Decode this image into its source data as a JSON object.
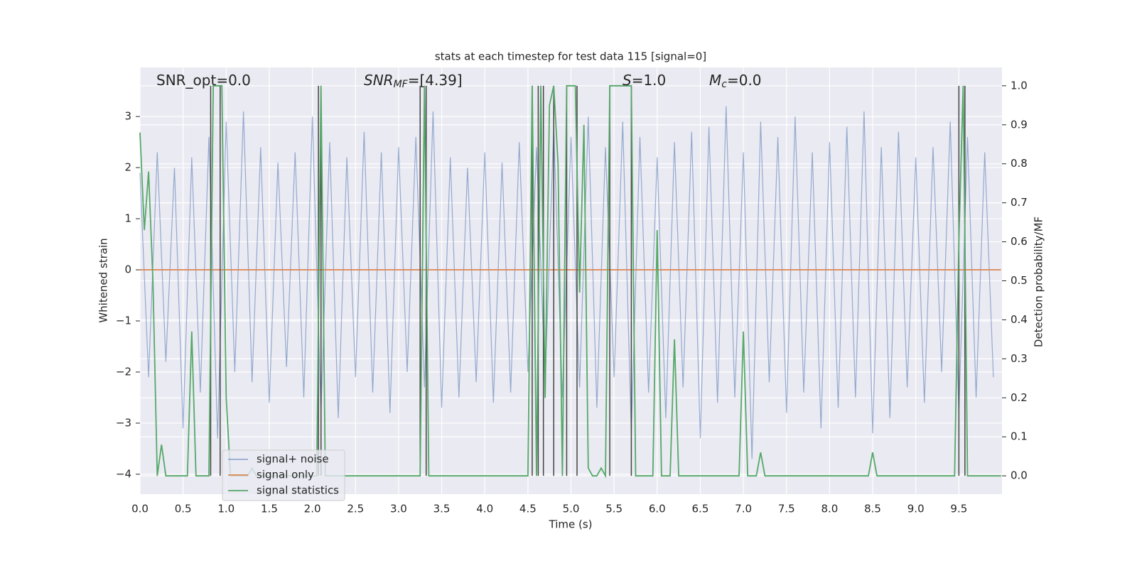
{
  "chart_data": {
    "type": "line",
    "title": "stats at each timestep for test data 115 [signal=0]",
    "xlabel": "Time (s)",
    "ylabel": "Whitened strain",
    "y2label": "Detection probability/MF",
    "annotations": [
      {
        "base": "SNR_opt=0.0"
      },
      {
        "base": "SNR",
        "sub": "MF",
        "rest": "=[4.39]"
      },
      {
        "base": "S",
        "rest": "=1.0"
      },
      {
        "base": "M",
        "sub": "c",
        "rest": "=0.0"
      }
    ],
    "xlim": [
      0,
      10
    ],
    "ylim": [
      -4.39,
      3.96
    ],
    "y2lim": [
      -0.047,
      1.047
    ],
    "xticks": [
      {
        "value": 0,
        "label": "0.0"
      },
      0.5,
      {
        "value": 1,
        "label": "1.0"
      },
      1.5,
      {
        "value": 2,
        "label": "2.0"
      },
      2.5,
      {
        "value": 3,
        "label": "3.0"
      },
      3.5,
      {
        "value": 4,
        "label": "4.0"
      },
      4.5,
      {
        "value": 5,
        "label": "5.0"
      },
      5.5,
      {
        "value": 6,
        "label": "6.0"
      },
      6.5,
      {
        "value": 7,
        "label": "7.0"
      },
      7.5,
      {
        "value": 8,
        "label": "8.0"
      },
      8.5,
      {
        "value": 9,
        "label": "9.0"
      },
      9.5
    ],
    "yticks": [
      {
        "value": -4,
        "label": "−4"
      },
      {
        "value": -3,
        "label": "−3"
      },
      {
        "value": -2,
        "label": "−2"
      },
      {
        "value": -1,
        "label": "−1"
      },
      0,
      1,
      2,
      3
    ],
    "y2ticks": [
      {
        "value": 0,
        "label": "0.0"
      },
      0.1,
      0.2,
      0.3,
      0.4,
      0.5,
      0.6,
      0.7,
      0.8,
      0.9,
      {
        "value": 1,
        "label": "1.0"
      }
    ],
    "grid": true,
    "legend": "lower left",
    "series": [
      {
        "name": "signal+ noise",
        "color": "#4c72b0",
        "x": [
          0,
          0.1,
          0.2,
          0.3,
          0.4,
          0.5,
          0.6,
          0.7,
          0.8,
          0.9,
          1,
          1.1,
          1.2,
          1.3,
          1.4,
          1.5,
          1.6,
          1.7,
          1.8,
          1.9,
          2,
          2.1,
          2.2,
          2.3,
          2.4,
          2.5,
          2.6,
          2.7,
          2.8,
          2.9,
          3,
          3.1,
          3.2,
          3.3,
          3.4,
          3.5,
          3.6,
          3.7,
          3.8,
          3.9,
          4,
          4.1,
          4.2,
          4.3,
          4.4,
          4.5,
          4.6,
          4.7,
          4.8,
          4.9,
          5,
          5.1,
          5.2,
          5.3,
          5.4,
          5.5,
          5.6,
          5.7,
          5.8,
          5.9,
          6,
          6.1,
          6.2,
          6.3,
          6.4,
          6.5,
          6.6,
          6.7,
          6.8,
          6.9,
          7,
          7.1,
          7.2,
          7.3,
          7.4,
          7.5,
          7.6,
          7.7,
          7.8,
          7.9,
          8,
          8.1,
          8.2,
          8.3,
          8.4,
          8.5,
          8.6,
          8.7,
          8.8,
          8.9,
          9,
          9.1,
          9.2,
          9.3,
          9.4,
          9.5,
          9.6,
          9.7,
          9.8,
          9.9
        ],
        "values": [
          1.9,
          -2.1,
          2.3,
          -1.8,
          2.0,
          -3.1,
          2.2,
          -2.4,
          2.6,
          -3.3,
          2.9,
          -2.0,
          3.1,
          -2.2,
          2.4,
          -2.6,
          2.1,
          -1.9,
          2.3,
          -2.5,
          3.0,
          -2.8,
          2.5,
          -2.9,
          2.2,
          -2.1,
          2.7,
          -2.4,
          2.3,
          -2.8,
          2.4,
          -2.0,
          2.6,
          -2.3,
          3.1,
          -2.7,
          2.2,
          -2.5,
          2.0,
          -2.2,
          2.3,
          -2.6,
          2.1,
          -2.4,
          2.5,
          -2.0,
          2.4,
          -2.2,
          2.8,
          -2.5,
          2.6,
          -2.3,
          3.0,
          -2.7,
          2.4,
          -2.1,
          2.9,
          -3.2,
          2.6,
          -2.4,
          2.2,
          -2.9,
          2.5,
          -2.3,
          2.7,
          -3.3,
          2.8,
          -2.6,
          3.2,
          -2.5,
          2.3,
          -3.7,
          2.9,
          -2.2,
          2.6,
          -2.8,
          3.0,
          -2.4,
          2.3,
          -3.1,
          2.5,
          -2.7,
          2.8,
          -2.5,
          3.1,
          -3.2,
          2.4,
          -2.9,
          2.7,
          -2.3,
          2.2,
          -2.6,
          2.4,
          -2.0,
          2.9,
          -2.8,
          2.6,
          -2.5,
          2.3,
          -2.1
        ]
      },
      {
        "name": "signal only",
        "color": "#dd8452",
        "x": [
          0,
          9.99
        ],
        "values": [
          0,
          0
        ]
      },
      {
        "name": "signal statistics",
        "color": "#55a868",
        "axis": "y2",
        "x": [
          0,
          0.05,
          0.1,
          0.15,
          0.2,
          0.25,
          0.3,
          0.55,
          0.6,
          0.65,
          0.8,
          0.85,
          0.9,
          0.95,
          1.0,
          1.05,
          1.25,
          1.3,
          1.35,
          2.05,
          2.1,
          2.15,
          2.2,
          3.25,
          3.3,
          3.35,
          4.5,
          4.55,
          4.6,
          4.65,
          4.7,
          4.75,
          4.8,
          4.85,
          4.9,
          4.95,
          5.0,
          5.05,
          5.1,
          5.15,
          5.2,
          5.25,
          5.3,
          5.35,
          5.4,
          5.45,
          5.5,
          5.55,
          5.7,
          5.75,
          5.95,
          6.0,
          6.05,
          6.15,
          6.2,
          6.25,
          6.95,
          7.0,
          7.05,
          7.15,
          7.2,
          7.25,
          8.45,
          8.5,
          8.55,
          9.45,
          9.5,
          9.55,
          9.6,
          9.99
        ],
        "values": [
          0.88,
          0.63,
          0.78,
          0.5,
          0.0,
          0.08,
          0.0,
          0.0,
          0.37,
          0.0,
          0.0,
          1.0,
          1.0,
          1.0,
          0.2,
          0.0,
          0.0,
          0.02,
          0.0,
          0.0,
          1.0,
          0.0,
          0.0,
          0.0,
          1.0,
          0.0,
          0.0,
          1.0,
          0.0,
          1.0,
          0.2,
          0.95,
          1.0,
          0.8,
          0.0,
          1.0,
          1.0,
          1.0,
          0.47,
          0.9,
          0.02,
          0.0,
          0.0,
          0.02,
          0.0,
          1.0,
          1.0,
          1.0,
          1.0,
          0.0,
          0.0,
          0.63,
          0.0,
          0.0,
          0.35,
          0.0,
          0.0,
          0.37,
          0.0,
          0.0,
          0.06,
          0.0,
          0.0,
          0.06,
          0.0,
          0.0,
          0.6,
          1.0,
          0.0,
          0.0
        ]
      }
    ],
    "vlines": {
      "color": "#444444",
      "x": [
        0.82,
        0.93,
        2.07,
        2.1,
        3.25,
        3.32,
        4.55,
        4.62,
        4.68,
        4.8,
        4.95,
        5.07,
        5.45,
        5.7,
        9.5,
        9.57
      ]
    }
  }
}
